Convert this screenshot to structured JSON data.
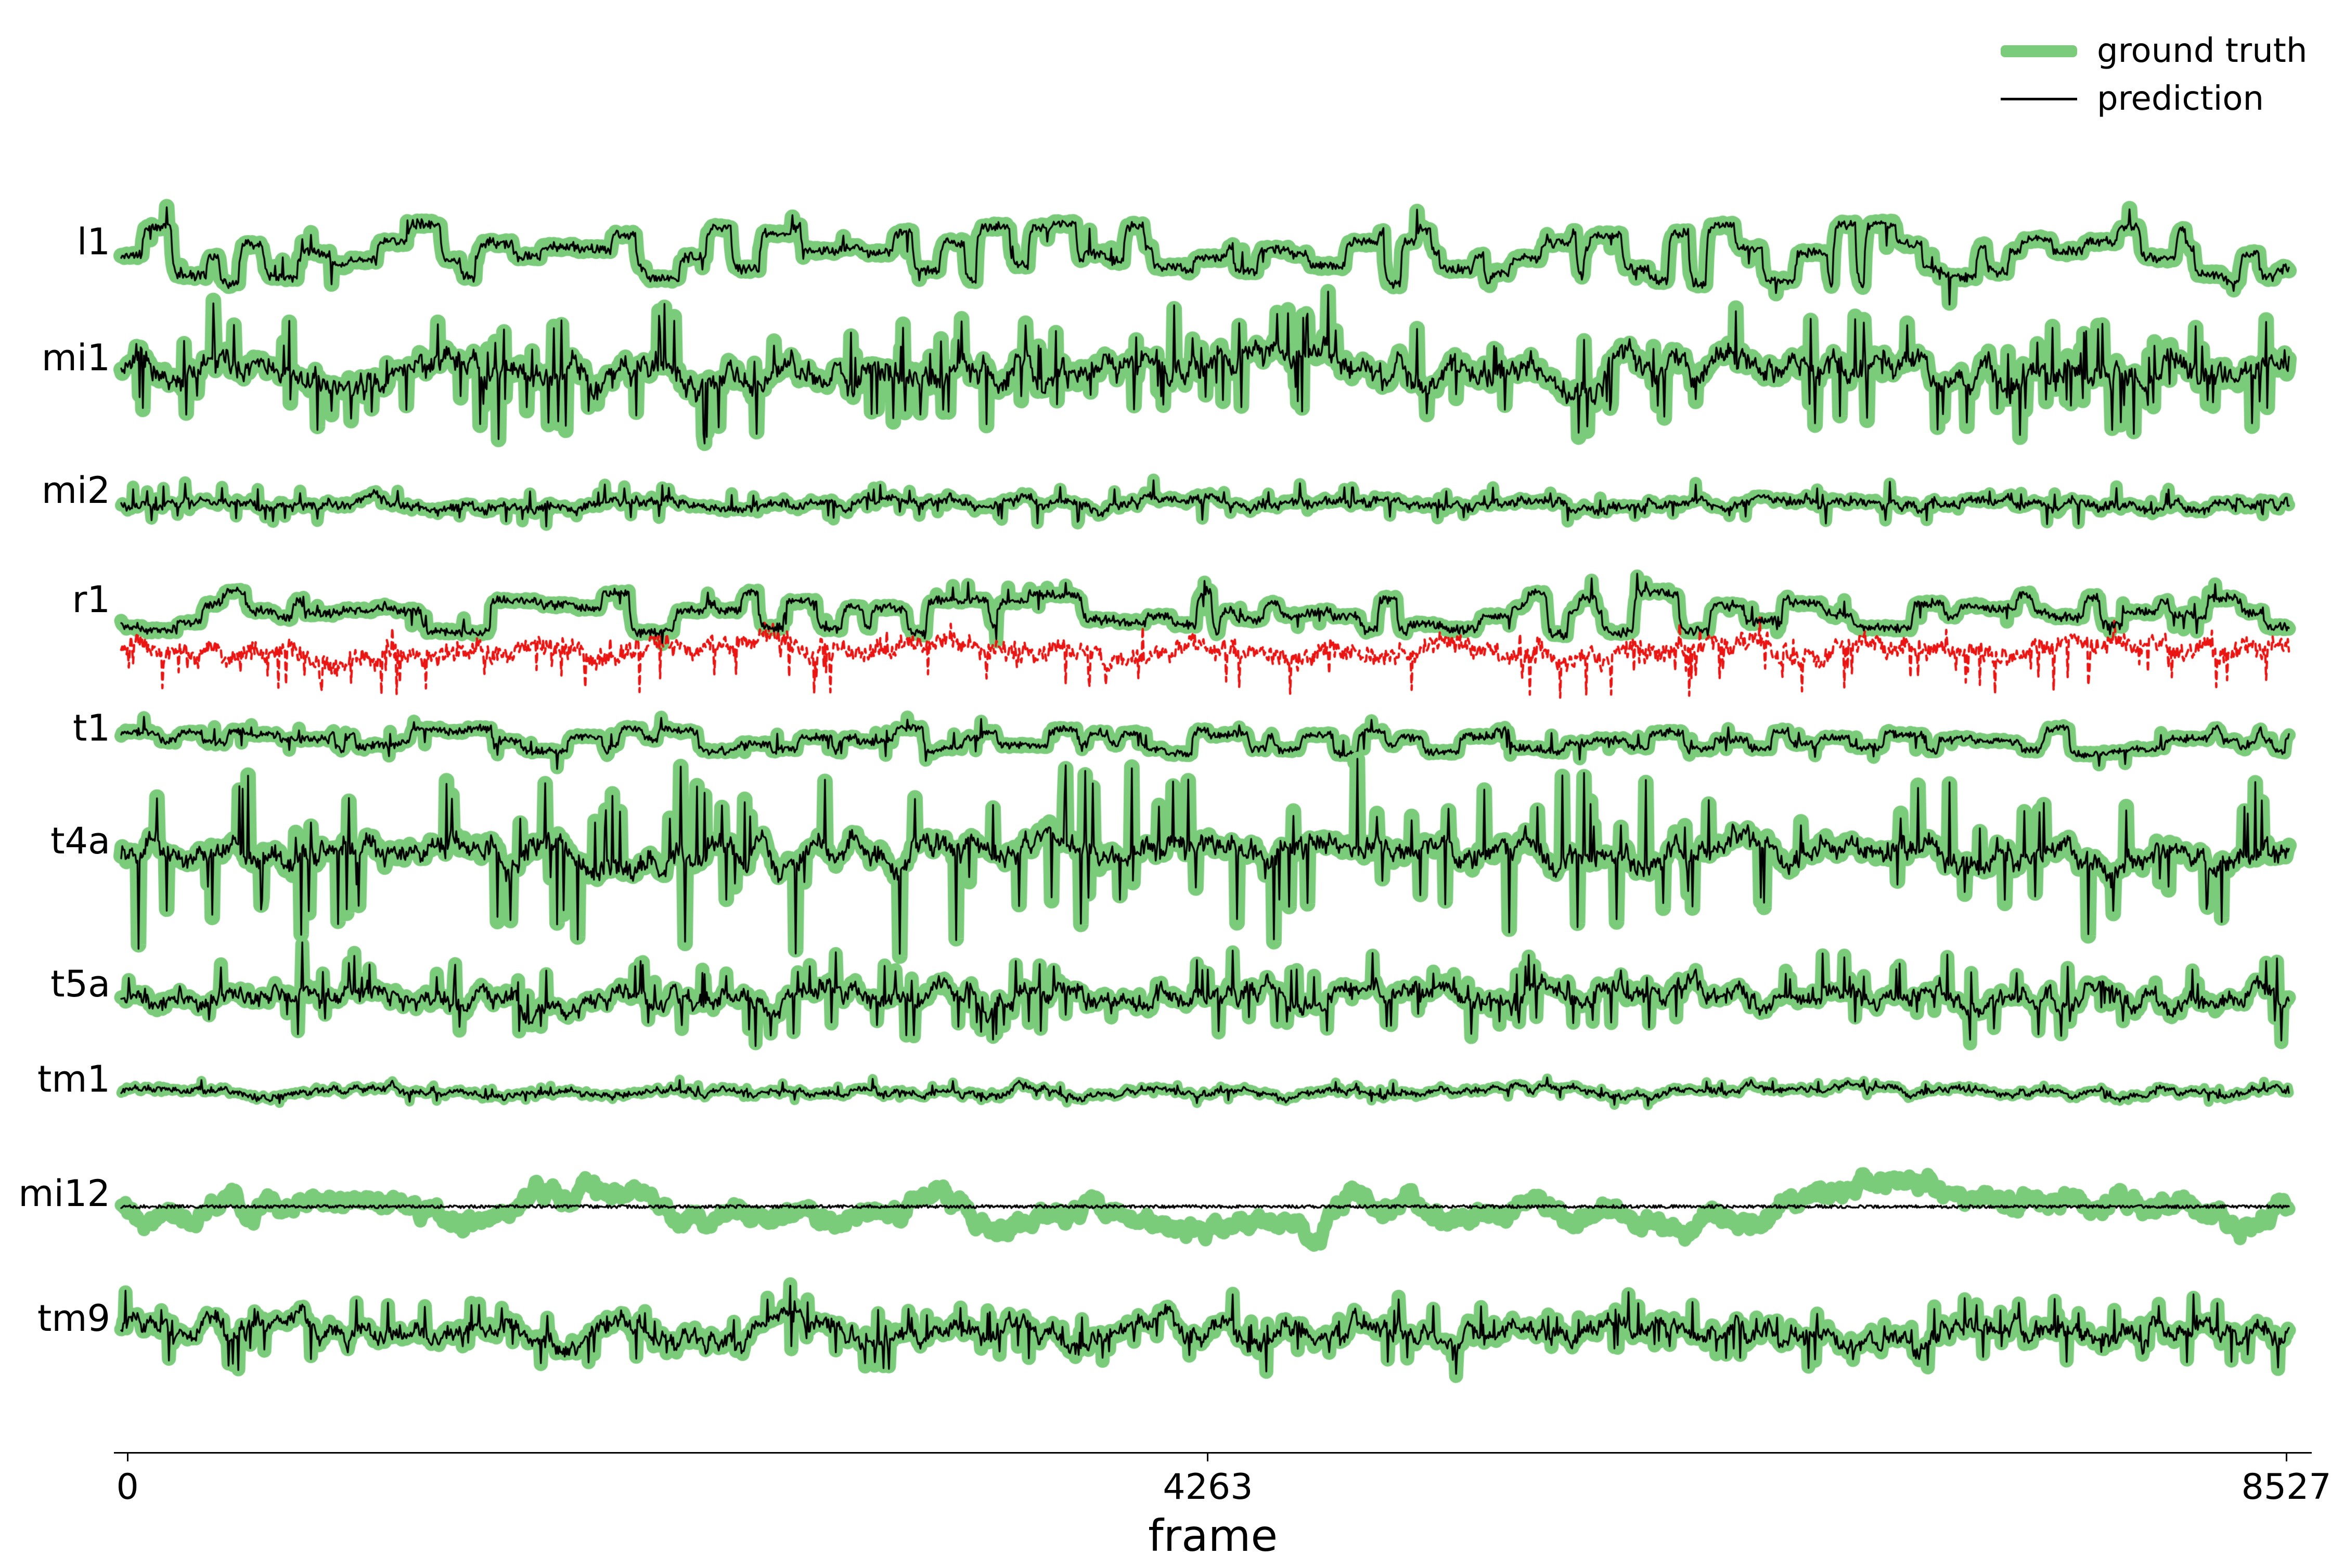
{
  "chart_data": {
    "type": "line",
    "title": "",
    "xlabel": "frame",
    "x_range": [
      0,
      8527
    ],
    "n_frames": 8527,
    "x_ticks": [
      {
        "value": 0,
        "label": "0"
      },
      {
        "value": 4263,
        "label": "4263"
      },
      {
        "value": 8527,
        "label": "8527"
      }
    ],
    "legend": [
      {
        "label": "ground truth",
        "color": "#7ACB7A",
        "line": "thick"
      },
      {
        "label": "prediction",
        "color": "#000000",
        "line": "thin"
      }
    ],
    "extra_series_note": "row r1 additionally shows an unlabeled red dashed trace below its ground-truth/prediction pair",
    "colors": {
      "ground_truth": "#7ACB7A",
      "prediction": "#000000",
      "red_dashed": "#EA1512",
      "background": "#FFFFFF"
    },
    "rows": [
      {
        "label": "l1",
        "y": 0.1625,
        "style": "steps",
        "amp": 60,
        "noise": 8,
        "spike_prob": 0.02,
        "spike_amp": 45,
        "band": 30,
        "pred_err": 6,
        "seed": 11
      },
      {
        "label": "mi1",
        "y": 0.2365,
        "style": "spiky",
        "amp": 22,
        "noise": 14,
        "spike_prob": 0.09,
        "spike_amp": 110,
        "band": 30,
        "pred_err": 9,
        "seed": 21
      },
      {
        "label": "mi2",
        "y": 0.3211,
        "style": "spiky",
        "amp": 10,
        "noise": 5,
        "spike_prob": 0.05,
        "spike_amp": 36,
        "band": 24,
        "pred_err": 5,
        "seed": 31
      },
      {
        "label": "r1",
        "y": 0.3907,
        "style": "steps",
        "amp": 42,
        "noise": 7,
        "spike_prob": 0.025,
        "spike_amp": 32,
        "band": 27,
        "pred_err": 6,
        "seed": 41,
        "red": {
          "offset": 72,
          "noise": 15,
          "spike_prob": 0.06,
          "spike_amp": 80,
          "seed": 42
        }
      },
      {
        "label": "t1",
        "y": 0.4726,
        "style": "steps",
        "amp": 26,
        "noise": 6,
        "spike_prob": 0.035,
        "spike_amp": 30,
        "band": 26,
        "pred_err": 5,
        "seed": 51
      },
      {
        "label": "t4a",
        "y": 0.5446,
        "style": "spiky",
        "amp": 25,
        "noise": 12,
        "spike_prob": 0.07,
        "spike_amp": 160,
        "band": 30,
        "pred_err": 10,
        "seed": 61
      },
      {
        "label": "t5a",
        "y": 0.6358,
        "style": "spiky",
        "amp": 20,
        "noise": 10,
        "spike_prob": 0.07,
        "spike_amp": 75,
        "band": 27,
        "pred_err": 8,
        "seed": 71
      },
      {
        "label": "tm1",
        "y": 0.6965,
        "style": "spiky",
        "amp": 7,
        "noise": 4,
        "spike_prob": 0.04,
        "spike_amp": 18,
        "band": 19,
        "pred_err": 3,
        "seed": 81
      },
      {
        "label": "mi12",
        "y": 0.7695,
        "style": "noise",
        "amp": 20,
        "noise": 10,
        "spike_prob": 0.0,
        "spike_amp": 0,
        "band": 25,
        "pred_err": 0,
        "seed": 91,
        "pred_flat": true
      },
      {
        "label": "tm9",
        "y": 0.8491,
        "style": "spiky",
        "amp": 16,
        "noise": 11,
        "spike_prob": 0.06,
        "spike_amp": 60,
        "band": 27,
        "pred_err": 7,
        "seed": 101
      }
    ],
    "layout": {
      "grid": false,
      "legend_pos": "top-right",
      "trace_x0": 0.0517,
      "trace_x1": 0.9765,
      "axis_y": 0.9262,
      "axis_x0": 0.0486,
      "axis_x1": 0.9863,
      "tick_x": [
        0.0544,
        0.5153,
        0.9754
      ],
      "n_points": 2000
    }
  }
}
